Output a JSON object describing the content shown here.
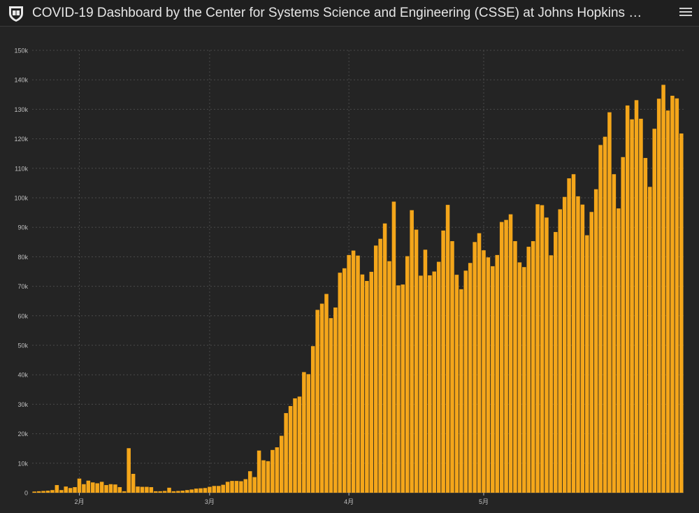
{
  "header": {
    "title": "COVID-19 Dashboard by the Center for Systems Science and Engineering (CSSE) at Johns Hopkins …"
  },
  "colors": {
    "background": "#242424",
    "header": "#1f1f1f",
    "bar": "#f4a61a",
    "grid": "#4a4a4a",
    "tick_text": "#bfbfbf"
  },
  "icons": {
    "logo": "university-seal-icon",
    "menu": "hamburger-menu-icon"
  },
  "chart_data": {
    "type": "bar",
    "ylim": [
      0,
      150000
    ],
    "y_ticks": [
      0,
      10000,
      20000,
      30000,
      40000,
      50000,
      60000,
      70000,
      80000,
      90000,
      100000,
      110000,
      120000,
      130000,
      140000,
      150000
    ],
    "y_tick_labels": [
      "0",
      "10k",
      "20k",
      "30k",
      "40k",
      "50k",
      "60k",
      "70k",
      "80k",
      "90k",
      "100k",
      "110k",
      "120k",
      "130k",
      "140k",
      "150k"
    ],
    "x_tick_labels": [
      {
        "label": "2月",
        "index": 10
      },
      {
        "label": "3月",
        "index": 39
      },
      {
        "label": "4月",
        "index": 70
      },
      {
        "label": "5月",
        "index": 100
      }
    ],
    "grid": true,
    "values": [
      400,
      500,
      600,
      700,
      900,
      2600,
      900,
      2100,
      1600,
      1900,
      4800,
      2900,
      4100,
      3500,
      3200,
      3700,
      2600,
      2900,
      2800,
      1900,
      500,
      15100,
      6400,
      2100,
      2000,
      2000,
      1900,
      500,
      500,
      600,
      1700,
      500,
      600,
      700,
      900,
      1100,
      1400,
      1500,
      1600,
      2000,
      2300,
      2300,
      2700,
      3700,
      4000,
      4000,
      3900,
      4600,
      7300,
      5300,
      14300,
      11000,
      10700,
      14500,
      15400,
      19300,
      27000,
      29400,
      32000,
      32600,
      40900,
      40200,
      49700,
      62000,
      64100,
      67400,
      59200,
      62800,
      74600,
      76100,
      80600,
      82100,
      80400,
      74000,
      71800,
      74900,
      83800,
      86100,
      91300,
      78500,
      98700,
      70300,
      70600,
      80200,
      95800,
      89200,
      73600,
      82400,
      73700,
      75000,
      78300,
      88900,
      97600,
      85300,
      73900,
      69000,
      75300,
      77900,
      85000,
      88000,
      82200,
      79800,
      76800,
      80600,
      91800,
      92500,
      94400,
      85300,
      78100,
      76500,
      83400,
      85300,
      97800,
      97500,
      93300,
      80500,
      88400,
      96100,
      100300,
      106600,
      108000,
      100500,
      97700,
      87300,
      95200,
      102900,
      117900,
      120700,
      129000,
      108000,
      96400,
      113800,
      131300,
      126600,
      133100,
      126800,
      113500,
      103700,
      123400,
      133600,
      138300,
      129600,
      134600,
      133700,
      121800
    ]
  }
}
